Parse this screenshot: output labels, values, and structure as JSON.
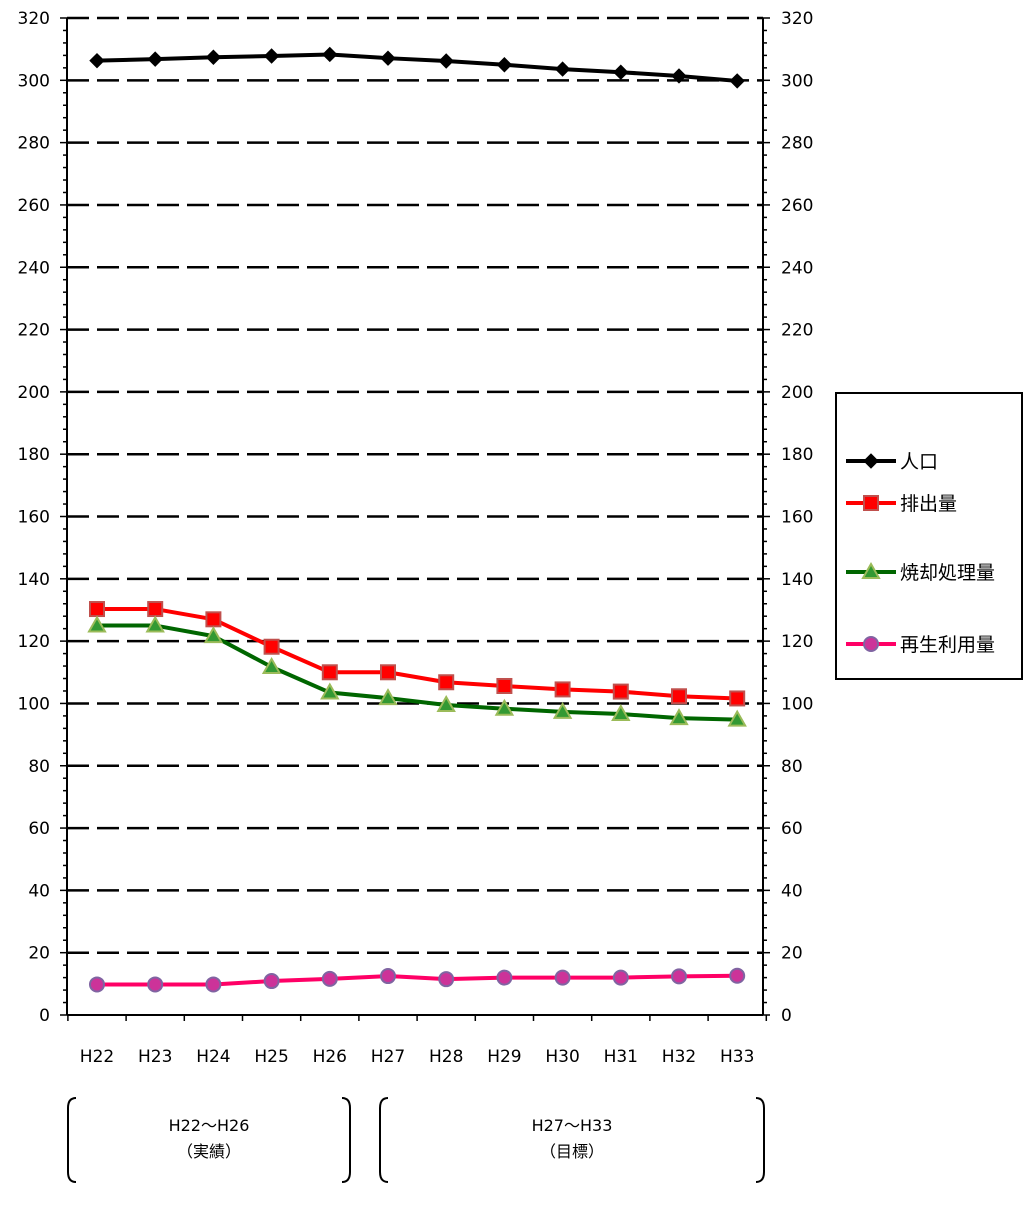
{
  "chart_data": {
    "type": "line",
    "categories": [
      "H22",
      "H23",
      "H24",
      "H25",
      "H26",
      "H27",
      "H28",
      "H29",
      "H30",
      "H31",
      "H32",
      "H33"
    ],
    "ylim": [
      0,
      320
    ],
    "yticks": [
      0,
      20,
      40,
      60,
      80,
      100,
      120,
      140,
      160,
      180,
      200,
      220,
      240,
      260,
      280,
      300,
      320
    ],
    "y2ticks": [
      0,
      20,
      40,
      60,
      80,
      100,
      120,
      140,
      160,
      180,
      200,
      220,
      240,
      260,
      280,
      300,
      320
    ],
    "grid": true,
    "legend_position": "right",
    "series": [
      {
        "name": "人口",
        "color": "#000000",
        "marker": "diamond",
        "marker_fill": "#000000",
        "marker_stroke": "#000000",
        "values": [
          306.3,
          306.8,
          307.4,
          307.8,
          308.3,
          307.1,
          306.2,
          305.0,
          303.6,
          302.6,
          301.4,
          299.8
        ]
      },
      {
        "name": "排出量",
        "color": "#ff0000",
        "marker": "square",
        "marker_fill": "#ff0000",
        "marker_stroke": "#c0504d",
        "values": [
          130.3,
          130.3,
          127.0,
          118.2,
          110.0,
          110.0,
          106.8,
          105.6,
          104.5,
          103.8,
          102.3,
          101.6
        ]
      },
      {
        "name": "焼却処理量",
        "color": "#006600",
        "marker": "triangle",
        "marker_fill": "#339933",
        "marker_stroke": "#9bbb59",
        "values": [
          125.0,
          125.0,
          121.6,
          111.7,
          103.5,
          101.7,
          99.5,
          98.3,
          97.3,
          96.6,
          95.3,
          94.8
        ]
      },
      {
        "name": "再生利用量",
        "color": "#ff0066",
        "marker": "circle",
        "marker_fill": "#cc3399",
        "marker_stroke": "#8064a2",
        "values": [
          9.8,
          9.8,
          9.8,
          10.9,
          11.6,
          12.5,
          11.5,
          12.0,
          12.0,
          12.0,
          12.4,
          12.6
        ]
      }
    ],
    "groups": [
      {
        "label": "H22～H26",
        "sublabel": "（実績）",
        "from": "H22",
        "to": "H26"
      },
      {
        "label": "H27～H33",
        "sublabel": "（目標）",
        "from": "H27",
        "to": "H33"
      }
    ]
  }
}
